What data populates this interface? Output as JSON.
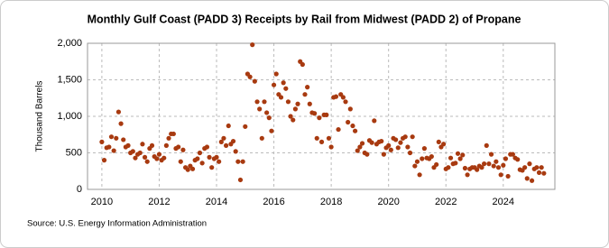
{
  "chart_data": {
    "type": "scatter",
    "title": "Monthly Gulf Coast (PADD 3) Receipts by Rail from Midwest (PADD 2) of Propane",
    "y_label": "Thousand Barrels",
    "source": "Source: U.S. Energy Information Administration",
    "color": "#a83a10",
    "grid": true,
    "xlim": [
      2009.5,
      2025.8
    ],
    "xticks": [
      2010,
      2012,
      2014,
      2016,
      2018,
      2020,
      2022,
      2024
    ],
    "ylim": [
      0,
      2000
    ],
    "yticks": [
      0,
      500,
      {
        "value": 1000,
        "label": "1,000"
      },
      {
        "value": 1500,
        "label": "1,500"
      },
      {
        "value": 2000,
        "label": "2,000"
      }
    ],
    "x": [
      2010,
      2010.083,
      2010.167,
      2010.25,
      2010.333,
      2010.417,
      2010.5,
      2010.583,
      2010.667,
      2010.75,
      2010.833,
      2010.917,
      2011,
      2011.083,
      2011.167,
      2011.25,
      2011.333,
      2011.417,
      2011.5,
      2011.583,
      2011.667,
      2011.75,
      2011.833,
      2011.917,
      2012,
      2012.083,
      2012.167,
      2012.25,
      2012.333,
      2012.417,
      2012.5,
      2012.583,
      2012.667,
      2012.75,
      2012.833,
      2012.917,
      2013,
      2013.083,
      2013.167,
      2013.25,
      2013.333,
      2013.417,
      2013.5,
      2013.583,
      2013.667,
      2013.75,
      2013.833,
      2013.917,
      2014,
      2014.083,
      2014.167,
      2014.25,
      2014.333,
      2014.417,
      2014.5,
      2014.583,
      2014.667,
      2014.75,
      2014.833,
      2014.917,
      2015,
      2015.083,
      2015.167,
      2015.25,
      2015.333,
      2015.417,
      2015.5,
      2015.583,
      2015.667,
      2015.75,
      2015.833,
      2015.917,
      2016,
      2016.083,
      2016.167,
      2016.25,
      2016.333,
      2016.417,
      2016.5,
      2016.583,
      2016.667,
      2016.75,
      2016.833,
      2016.917,
      2017,
      2017.083,
      2017.167,
      2017.25,
      2017.333,
      2017.417,
      2017.5,
      2017.583,
      2017.667,
      2017.75,
      2017.833,
      2017.917,
      2018,
      2018.083,
      2018.167,
      2018.25,
      2018.333,
      2018.417,
      2018.5,
      2018.583,
      2018.667,
      2018.75,
      2018.833,
      2018.917,
      2019,
      2019.083,
      2019.167,
      2019.25,
      2019.333,
      2019.417,
      2019.5,
      2019.583,
      2019.667,
      2019.75,
      2019.833,
      2019.917,
      2020,
      2020.083,
      2020.167,
      2020.25,
      2020.333,
      2020.417,
      2020.5,
      2020.583,
      2020.667,
      2020.75,
      2020.833,
      2020.917,
      2021,
      2021.083,
      2021.167,
      2021.25,
      2021.333,
      2021.417,
      2021.5,
      2021.583,
      2021.667,
      2021.75,
      2021.833,
      2021.917,
      2022,
      2022.083,
      2022.167,
      2022.25,
      2022.333,
      2022.417,
      2022.5,
      2022.583,
      2022.667,
      2022.75,
      2022.833,
      2022.917,
      2023,
      2023.083,
      2023.167,
      2023.25,
      2023.333,
      2023.417,
      2023.5,
      2023.583,
      2023.667,
      2023.75,
      2023.833,
      2023.917,
      2024,
      2024.083,
      2024.167,
      2024.25,
      2024.333,
      2024.417,
      2024.5,
      2024.583,
      2024.667,
      2024.75,
      2024.833,
      2024.917,
      2025,
      2025.083,
      2025.167,
      2025.25,
      2025.333,
      2025.417
    ],
    "values": [
      650,
      400,
      570,
      580,
      720,
      530,
      700,
      1060,
      900,
      680,
      580,
      600,
      500,
      520,
      430,
      480,
      500,
      620,
      440,
      380,
      560,
      600,
      450,
      420,
      480,
      400,
      430,
      600,
      700,
      760,
      760,
      560,
      580,
      380,
      540,
      300,
      270,
      320,
      280,
      400,
      420,
      500,
      360,
      560,
      580,
      440,
      300,
      420,
      440,
      380,
      650,
      700,
      600,
      870,
      620,
      660,
      520,
      380,
      130,
      380,
      860,
      1580,
      1540,
      1980,
      1480,
      1200,
      1100,
      700,
      1200,
      1050,
      980,
      800,
      1430,
      1580,
      1300,
      1260,
      1460,
      1380,
      1200,
      1000,
      950,
      1100,
      1170,
      1750,
      1710,
      1300,
      1400,
      1170,
      1050,
      1040,
      700,
      980,
      650,
      1020,
      1020,
      700,
      580,
      1260,
      1270,
      820,
      1300,
      1260,
      1200,
      920,
      1100,
      870,
      800,
      530,
      580,
      630,
      500,
      480,
      670,
      640,
      940,
      620,
      650,
      660,
      480,
      570,
      600,
      540,
      700,
      680,
      570,
      640,
      700,
      720,
      580,
      500,
      720,
      320,
      380,
      200,
      420,
      560,
      430,
      420,
      450,
      300,
      340,
      650,
      580,
      620,
      280,
      300,
      430,
      350,
      360,
      490,
      420,
      470,
      290,
      200,
      280,
      300,
      300,
      270,
      320,
      300,
      350,
      600,
      350,
      480,
      320,
      380,
      300,
      200,
      330,
      420,
      180,
      480,
      480,
      430,
      410,
      270,
      260,
      300,
      150,
      350,
      120,
      280,
      300,
      230,
      300,
      220
    ]
  }
}
